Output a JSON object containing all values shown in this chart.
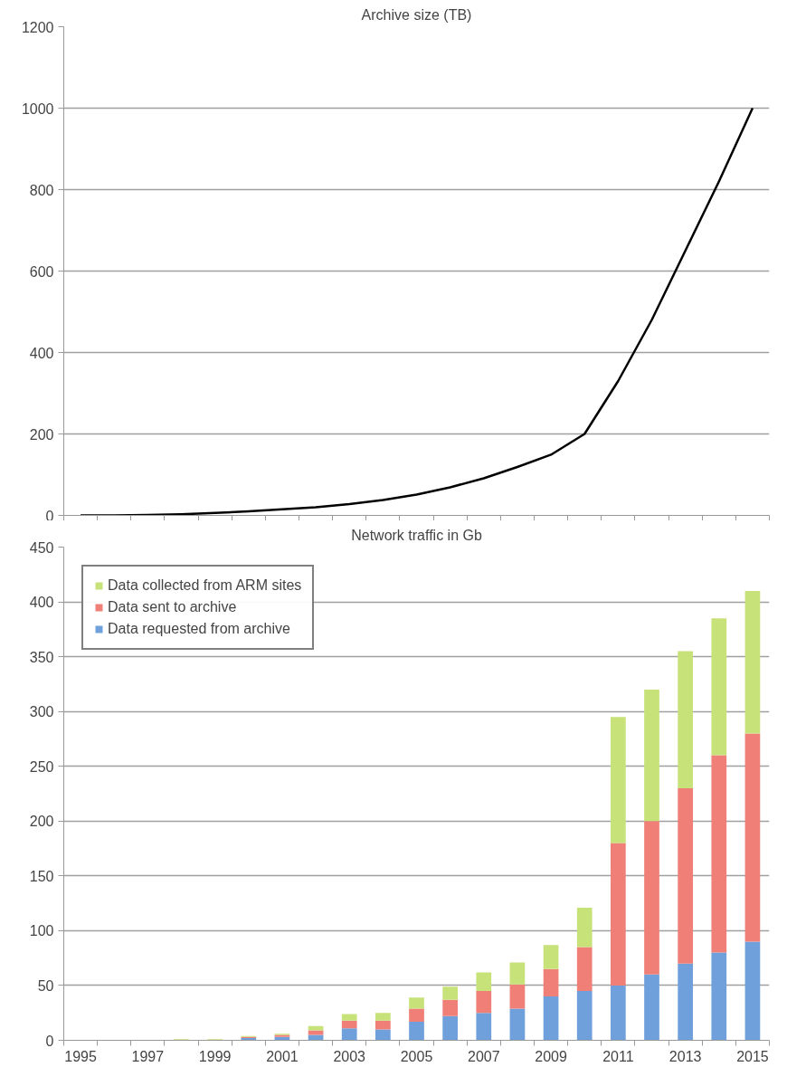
{
  "chart_data": [
    {
      "type": "line",
      "title": "Archive size (TB)",
      "categories": [
        "1995",
        null,
        "1997",
        null,
        "1999",
        null,
        "2001",
        null,
        "2003",
        null,
        "2005",
        null,
        "2007",
        null,
        "2009",
        null,
        "2011",
        null,
        "2013",
        null,
        "2015"
      ],
      "values": [
        0,
        0,
        1,
        3,
        6,
        10,
        15,
        20,
        28,
        38,
        51,
        69,
        91,
        119,
        149,
        200,
        330,
        480,
        650,
        820,
        1000
      ],
      "color": "#000000",
      "ylim": [
        0,
        1200
      ],
      "yticks": [
        0,
        200,
        400,
        600,
        800,
        1000,
        1200
      ],
      "grid": "y",
      "tick_labels": "y"
    },
    {
      "type": "bar",
      "title": "Network traffic in Gb",
      "stacked": true,
      "categories": [
        "1995",
        null,
        "1997",
        null,
        "1999",
        null,
        "2001",
        null,
        "2003",
        null,
        "2005",
        null,
        "2007",
        null,
        "2009",
        null,
        "2011",
        null,
        "2013",
        null,
        "2015"
      ],
      "series": [
        {
          "name": "Data requested from archive",
          "color": "#6fa0dc",
          "values": [
            0,
            0,
            0,
            0,
            0,
            2,
            3,
            5,
            11,
            10,
            17,
            22,
            25,
            29,
            40,
            45,
            50,
            60,
            70,
            80,
            90
          ]
        },
        {
          "name": "Data sent to archive",
          "color": "#ef7f77",
          "values": [
            0,
            0,
            0,
            0,
            0,
            1,
            2,
            4,
            7,
            8,
            12,
            15,
            20,
            22,
            25,
            40,
            130,
            140,
            160,
            180,
            190
          ]
        },
        {
          "name": "Data collected from ARM sites",
          "color": "#c8e27a",
          "values": [
            0,
            0,
            0,
            1,
            1,
            1,
            1,
            4,
            6,
            7,
            10,
            12,
            17,
            20,
            22,
            36,
            115,
            120,
            125,
            125,
            130
          ]
        }
      ],
      "ylim": [
        0,
        450
      ],
      "yticks": [
        0,
        50,
        100,
        150,
        200,
        250,
        300,
        350,
        400,
        450
      ],
      "grid": "y",
      "legend": "top left"
    }
  ]
}
